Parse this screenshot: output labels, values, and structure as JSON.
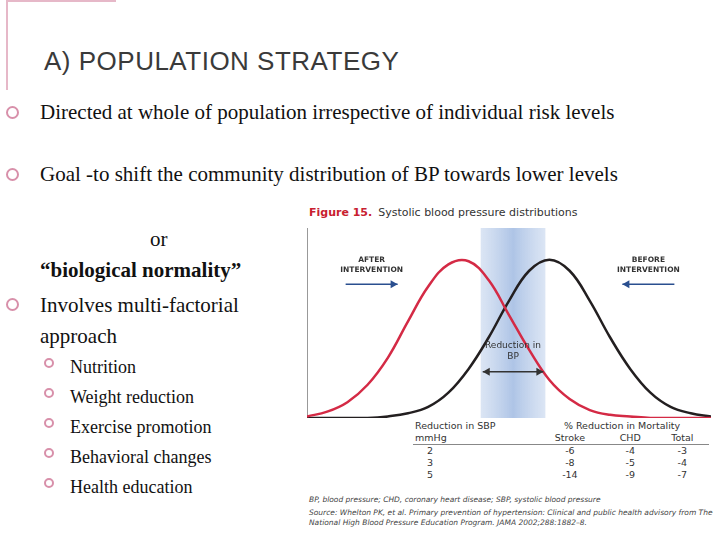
{
  "slide": {
    "title": "A) POPULATION STRATEGY",
    "bullets": [
      {
        "text": "Directed at whole of population irrespective of individual risk levels"
      },
      {
        "text": "Goal -to shift the community distribution of BP towards lower levels",
        "continuation": [
          "or",
          "“biological normality”"
        ]
      },
      {
        "text": "Involves multi-factorial approach",
        "sub": [
          "Nutrition",
          "Weight reduction",
          "Exercise promotion",
          "Behavioral changes",
          "Health education"
        ]
      }
    ]
  },
  "figure": {
    "label": "Figure 15.",
    "title": "Systolic blood pressure distributions",
    "table": {
      "left_header": [
        "Reduction in SBP",
        "mmHg"
      ],
      "group_header": "% Reduction in Mortality",
      "columns": [
        "Stroke",
        "CHD",
        "Total"
      ],
      "rows": [
        [
          2,
          -6,
          -4,
          -3
        ],
        [
          3,
          -8,
          -5,
          -4
        ],
        [
          5,
          -14,
          -9,
          -7
        ]
      ]
    },
    "footnote": "BP, blood pressure; CHD, coronary heart disease; SBP, systolic blood pressure",
    "source": "Source: Whelton PK, et al. Primary prevention of hypertension: Clinical and public health advisory from The National High Blood Pressure Education Program. JAMA 2002;288:1882–8."
  },
  "chart_data": {
    "type": "line",
    "x": [
      0,
      5,
      10,
      15,
      20,
      25,
      30,
      35,
      40,
      45,
      50,
      55,
      60,
      65,
      70,
      75,
      80,
      85,
      90,
      95,
      100
    ],
    "series": [
      {
        "name": "AFTER INTERVENTION",
        "color": "#d42a45",
        "values": [
          1,
          4,
          10,
          21,
          38,
          61,
          83,
          97,
          99,
          87,
          65,
          43,
          24,
          12,
          5,
          2,
          1,
          0,
          0,
          0,
          0
        ]
      },
      {
        "name": "BEFORE INTERVENTION",
        "color": "#231f20",
        "values": [
          0,
          0,
          0,
          0,
          1,
          3,
          7,
          16,
          31,
          51,
          74,
          93,
          100,
          93,
          74,
          51,
          31,
          16,
          7,
          3,
          1
        ]
      }
    ],
    "band": {
      "x": [
        43,
        59
      ],
      "label": "Reduction in BP"
    },
    "xlim": [
      0,
      100
    ],
    "ylim": [
      0,
      120
    ],
    "grid": false,
    "tick_labels": false,
    "legend": "none"
  }
}
